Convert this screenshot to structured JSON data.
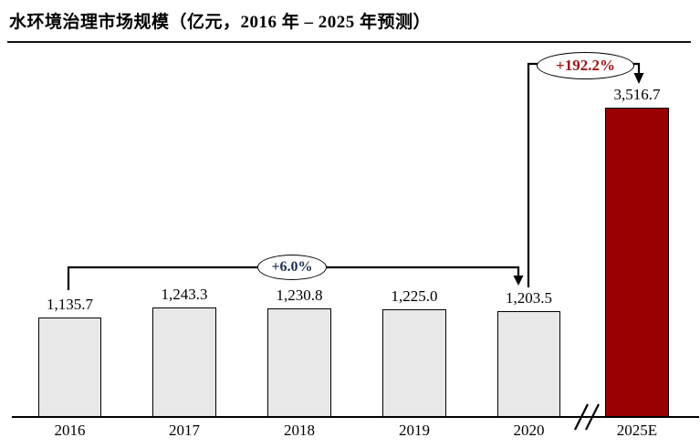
{
  "header": {
    "title": "水环境治理市场规模（亿元，2016 年 – 2025 年预测）"
  },
  "chart_data": {
    "type": "bar",
    "title": "水环境治理市场规模（亿元，2016 年 – 2025 年预测）",
    "unit": "亿元",
    "categories": [
      "2016",
      "2017",
      "2018",
      "2019",
      "2020",
      "2025E"
    ],
    "values": [
      1135.7,
      1243.3,
      1230.8,
      1225.0,
      1203.5,
      3516.7
    ],
    "value_labels": [
      "1,135.7",
      "1,243.3",
      "1,230.8",
      "1,225.0",
      "1,203.5",
      "3,516.7"
    ],
    "ylim": [
      0,
      3650
    ],
    "grid": false,
    "legend": "none",
    "axis_break_between": [
      "2020",
      "2025E"
    ],
    "bar_colors": [
      "#E8E8E8",
      "#E8E8E8",
      "#E8E8E8",
      "#E8E8E8",
      "#E8E8E8",
      "#990000"
    ],
    "bar_border_color": "#000000",
    "annotations": [
      {
        "label": "+6.0%",
        "from": "2016",
        "to": "2020",
        "text_color": "#1C2F55"
      },
      {
        "label": "+192.2%",
        "from": "2020",
        "to": "2025E",
        "text_color": "#A01515"
      }
    ]
  }
}
